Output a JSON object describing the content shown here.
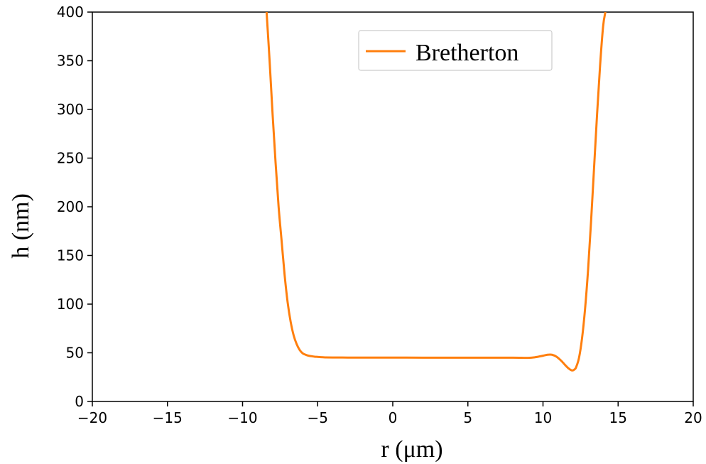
{
  "chart_data": {
    "type": "line",
    "title": "",
    "xlabel": "r (μm)",
    "ylabel": "h (nm)",
    "xlim": [
      -20,
      20
    ],
    "ylim": [
      0,
      400
    ],
    "xticks": [
      -20,
      -15,
      -10,
      -5,
      0,
      5,
      10,
      15,
      20
    ],
    "xtick_labels": [
      "−20",
      "−15",
      "−10",
      "−5",
      "0",
      "5",
      "10",
      "15",
      "20"
    ],
    "yticks": [
      0,
      50,
      100,
      150,
      200,
      250,
      300,
      350,
      400
    ],
    "ytick_labels": [
      "0",
      "50",
      "100",
      "150",
      "200",
      "250",
      "300",
      "350",
      "400"
    ],
    "grid": false,
    "legend_position": "top-right",
    "series": [
      {
        "name": "Bretherton",
        "color": "#ff7f0e",
        "x": [
          -8.4,
          -8.2,
          -8.0,
          -7.8,
          -7.6,
          -7.4,
          -7.2,
          -7.0,
          -6.8,
          -6.6,
          -6.4,
          -6.2,
          -6.0,
          -5.8,
          -5.6,
          -5.4,
          -5.2,
          -5.0,
          -4.8,
          -4.5,
          -4.0,
          -3.0,
          -2.0,
          0.0,
          2.0,
          4.0,
          6.0,
          8.0,
          9.0,
          9.5,
          10.0,
          10.3,
          10.6,
          10.9,
          11.2,
          11.5,
          11.7,
          11.9,
          12.0,
          12.1,
          12.2,
          12.4,
          12.6,
          12.8,
          13.0,
          13.2,
          13.4,
          13.6,
          13.8,
          14.0,
          14.15
        ],
        "y": [
          400,
          350,
          295,
          245,
          200,
          165,
          130,
          102,
          82,
          68,
          59,
          53,
          49.5,
          48,
          47,
          46.5,
          46,
          45.8,
          45.5,
          45.3,
          45.2,
          45.1,
          45.1,
          45.1,
          45.0,
          45.0,
          45.0,
          45.0,
          44.8,
          45.5,
          47,
          48,
          48,
          46,
          42,
          37,
          34,
          32,
          32,
          33,
          35,
          45,
          65,
          95,
          135,
          185,
          240,
          295,
          345,
          385,
          400
        ]
      }
    ]
  }
}
